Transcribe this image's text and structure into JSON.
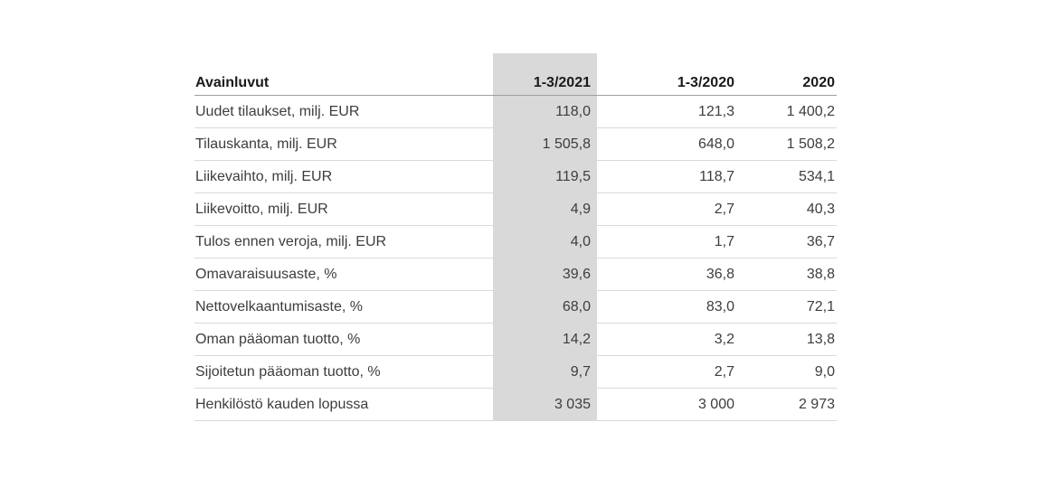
{
  "table": {
    "title": "Avainluvut",
    "highlighted_column": "1-3/2021",
    "colors": {
      "highlight_bg": "#d9d9d9",
      "header_rule": "#a0a0a0",
      "row_rule": "#d9d9d9",
      "header_text": "#1a1a1a",
      "body_text": "#3d3d3d",
      "page_bg": "#ffffff"
    },
    "columns": [
      "Avainluvut",
      "1-3/2021",
      "1-3/2020",
      "2020"
    ],
    "rows": [
      {
        "label": "Uudet tilaukset, milj. EUR",
        "values": [
          "118,0",
          "121,3",
          "1 400,2"
        ]
      },
      {
        "label": "Tilauskanta, milj. EUR",
        "values": [
          "1 505,8",
          "648,0",
          "1 508,2"
        ]
      },
      {
        "label": "Liikevaihto, milj. EUR",
        "values": [
          "119,5",
          "118,7",
          "534,1"
        ]
      },
      {
        "label": "Liikevoitto, milj. EUR",
        "values": [
          "4,9",
          "2,7",
          "40,3"
        ]
      },
      {
        "label": "Tulos ennen veroja, milj. EUR",
        "values": [
          "4,0",
          "1,7",
          "36,7"
        ]
      },
      {
        "label": "Omavaraisuusaste, %",
        "values": [
          "39,6",
          "36,8",
          "38,8"
        ]
      },
      {
        "label": "Nettovelkaantumisaste, %",
        "values": [
          "68,0",
          "83,0",
          "72,1"
        ]
      },
      {
        "label": "Oman pääoman tuotto, %",
        "values": [
          "14,2",
          "3,2",
          "13,8"
        ]
      },
      {
        "label": "Sijoitetun pääoman tuotto, %",
        "values": [
          "9,7",
          "2,7",
          "9,0"
        ]
      },
      {
        "label": "Henkilöstö kauden lopussa",
        "values": [
          "3 035",
          "3 000",
          "2 973"
        ]
      }
    ]
  }
}
